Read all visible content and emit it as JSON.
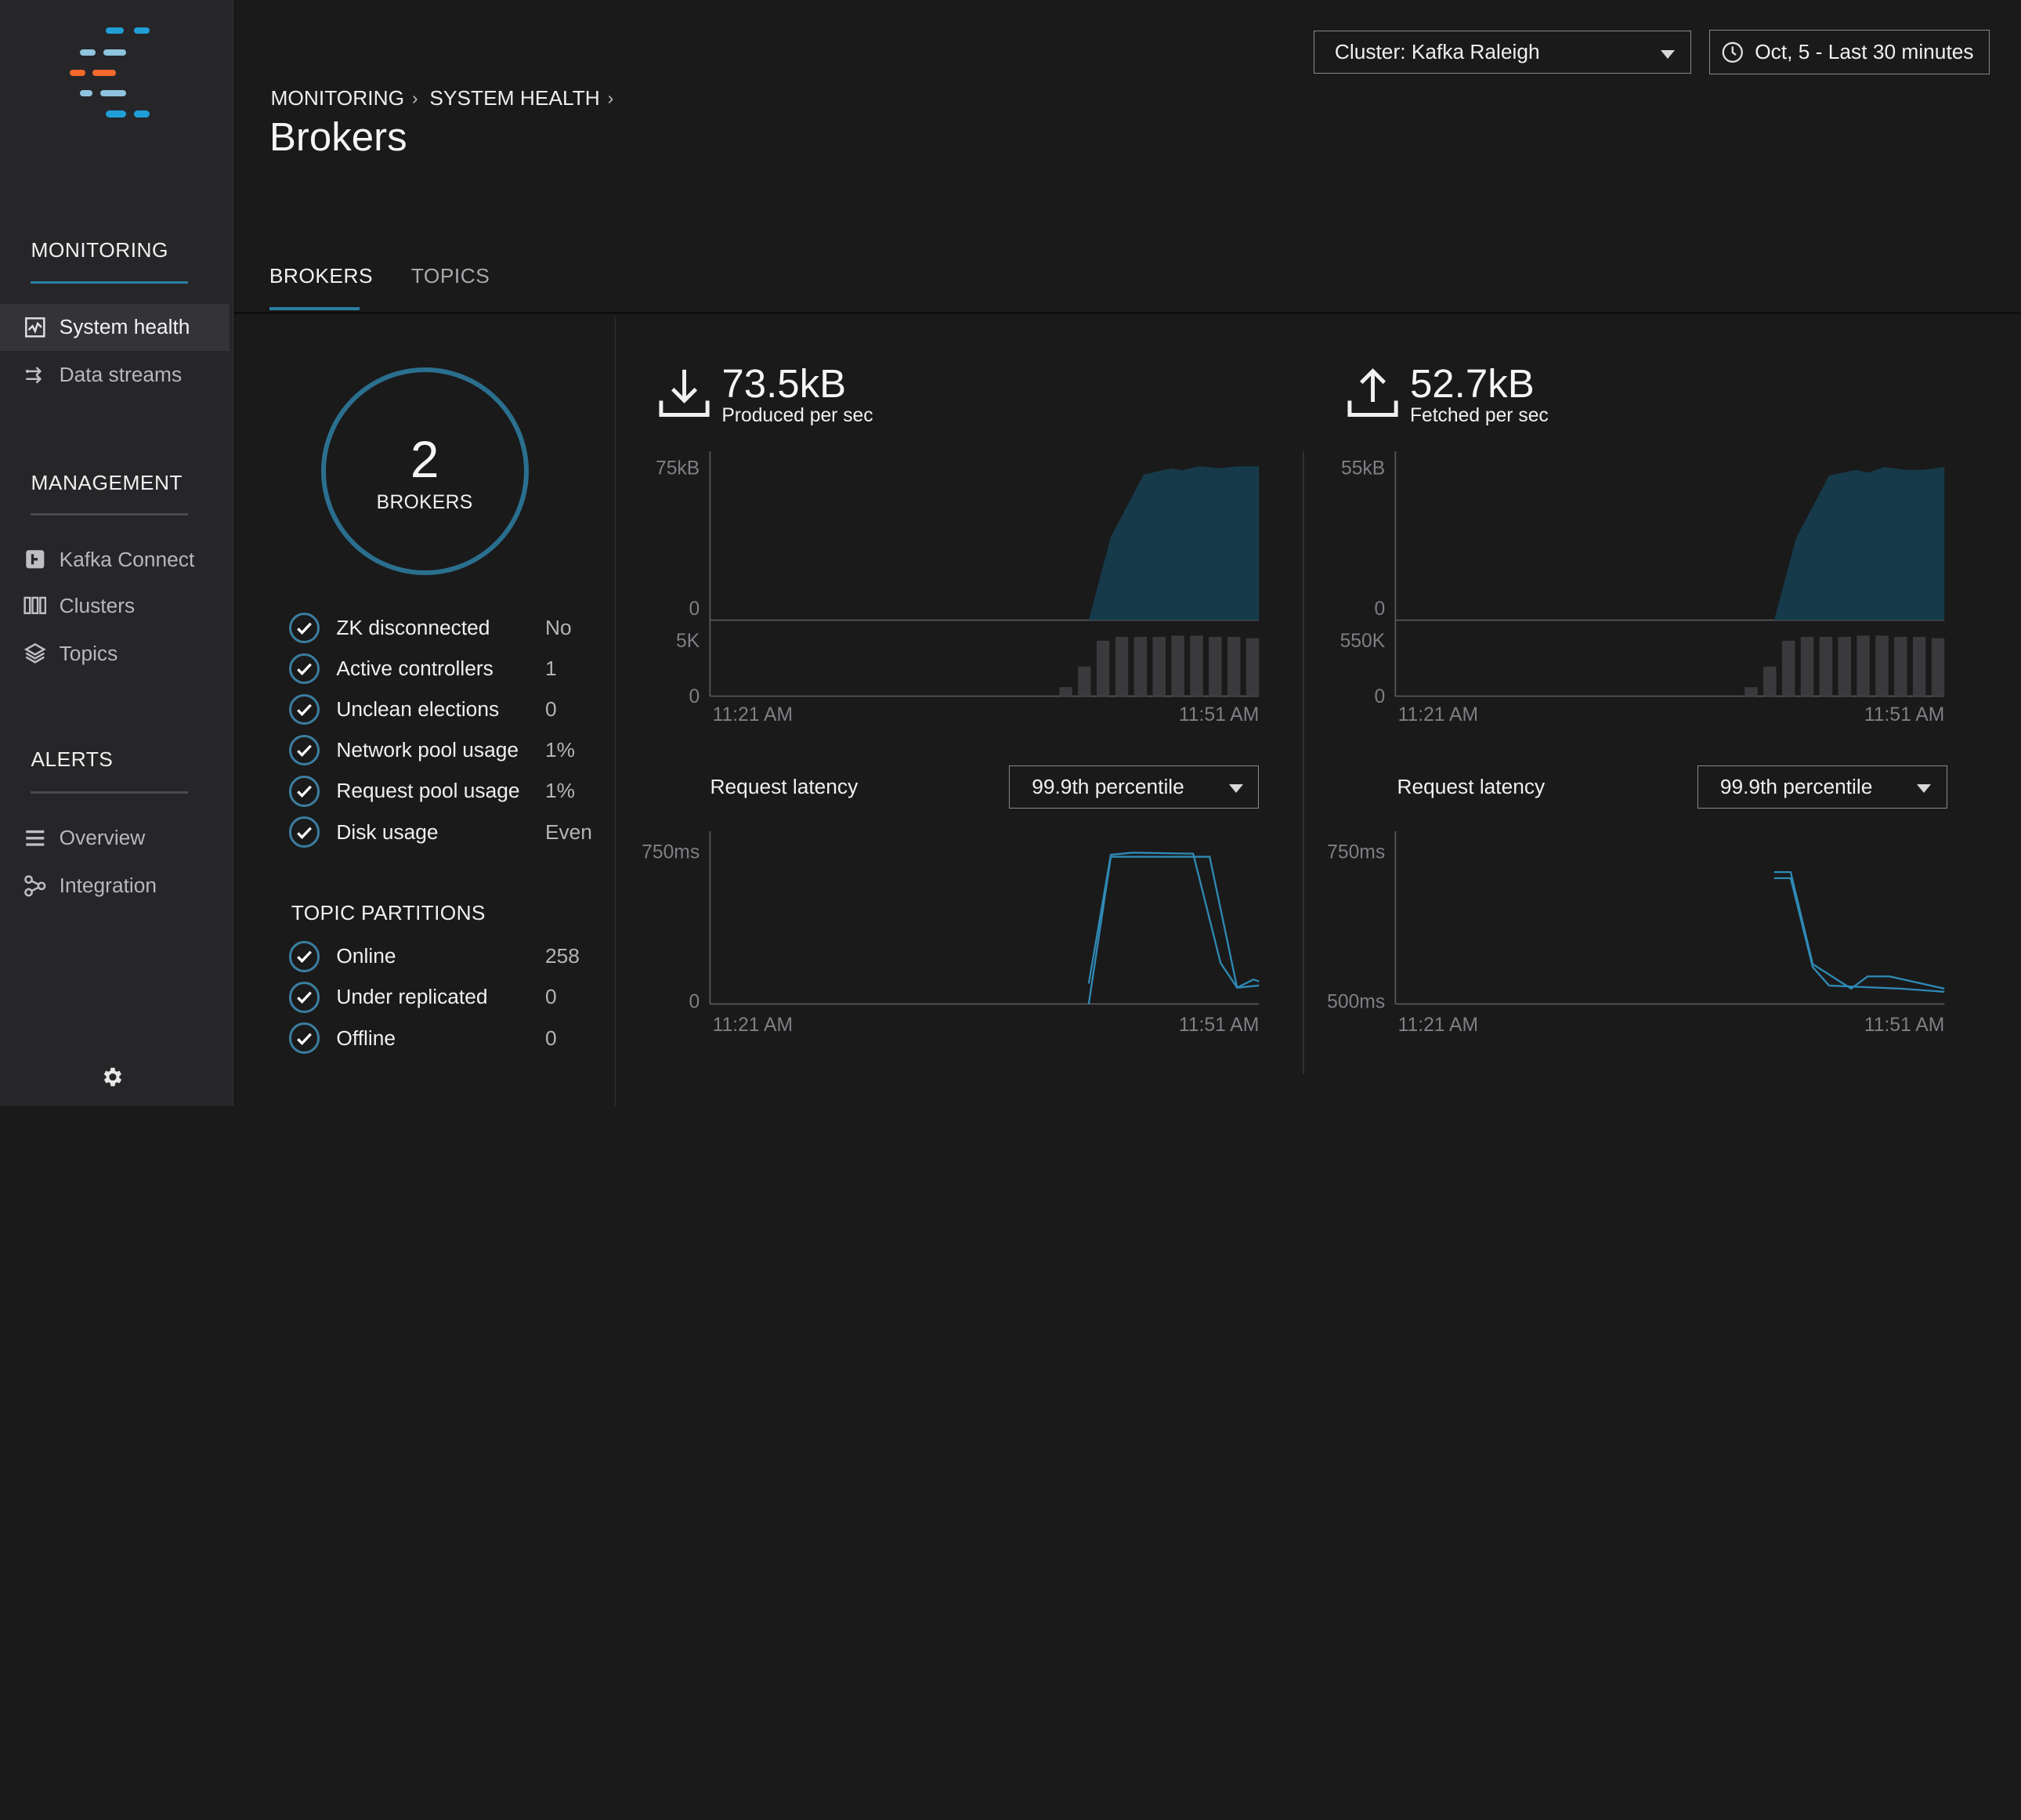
{
  "sidebar": {
    "sections": [
      {
        "title": "MONITORING",
        "items": [
          {
            "label": "System health",
            "icon": "activity-chart-icon",
            "active": true
          },
          {
            "label": "Data streams",
            "icon": "data-streams-icon",
            "active": false
          }
        ]
      },
      {
        "title": "MANAGEMENT",
        "items": [
          {
            "label": "Kafka Connect",
            "icon": "kafka-connect-icon",
            "active": false
          },
          {
            "label": "Clusters",
            "icon": "clusters-icon",
            "active": false
          },
          {
            "label": "Topics",
            "icon": "layers-icon",
            "active": false
          }
        ]
      },
      {
        "title": "ALERTS",
        "items": [
          {
            "label": "Overview",
            "icon": "list-icon",
            "active": false
          },
          {
            "label": "Integration",
            "icon": "integration-icon",
            "active": false
          }
        ]
      }
    ],
    "settings_icon": "gear-icon"
  },
  "header": {
    "breadcrumb": [
      "MONITORING",
      "SYSTEM HEALTH"
    ],
    "title": "Brokers",
    "cluster_select": "Cluster: Kafka Raleigh",
    "time_range": "Oct, 5 - Last 30 minutes"
  },
  "tabs": [
    {
      "label": "BROKERS",
      "active": true
    },
    {
      "label": "TOPICS",
      "active": false
    }
  ],
  "brokers": {
    "count": "2",
    "count_label": "BROKERS",
    "status": [
      {
        "label": "ZK disconnected",
        "value": "No"
      },
      {
        "label": "Active controllers",
        "value": "1"
      },
      {
        "label": "Unclean elections",
        "value": "0"
      },
      {
        "label": "Network pool usage",
        "value": "1%"
      },
      {
        "label": "Request pool usage",
        "value": "1%"
      },
      {
        "label": "Disk usage",
        "value": "Even"
      }
    ],
    "partitions_title": "TOPIC PARTITIONS",
    "partitions": [
      {
        "label": "Online",
        "value": "258"
      },
      {
        "label": "Under replicated",
        "value": "0"
      },
      {
        "label": "Offline",
        "value": "0"
      }
    ]
  },
  "produced": {
    "value": "73.5kB",
    "label": "Produced per sec",
    "icon": "download-icon",
    "latency_label": "Request latency",
    "latency_select": "99.9th percentile"
  },
  "fetched": {
    "value": "52.7kB",
    "label": "Fetched per sec",
    "icon": "upload-icon",
    "latency_label": "Request latency",
    "latency_select": "99.9th percentile"
  },
  "colors": {
    "accent": "#2a7fa3",
    "area_fill": "#163a4a",
    "line": "#2f8ab5",
    "bar": "#3a3a3d",
    "logo_blue": "#1f9fd6",
    "logo_orange": "#f26a2b",
    "logo_light": "#8fc4df"
  },
  "chart_data": [
    {
      "type": "area",
      "name": "produced-throughput",
      "x_labels": [
        "11:21 AM",
        "11:51 AM"
      ],
      "y_labels": [
        "75kB",
        "0"
      ],
      "ylim": [
        0,
        75
      ],
      "x": [
        0,
        0.69,
        0.73,
        0.79,
        0.84,
        0.86,
        0.89,
        0.93,
        0.96,
        1.0
      ],
      "values": [
        0,
        0,
        40,
        70,
        73,
        72,
        74,
        73,
        74,
        74
      ]
    },
    {
      "type": "bar",
      "name": "produced-requests",
      "y_labels": [
        "5K",
        "0"
      ],
      "ylim": [
        0,
        5
      ],
      "values": [
        0.7,
        2.3,
        4.3,
        4.6,
        4.6,
        4.6,
        4.7,
        4.7,
        4.6,
        4.6,
        4.5
      ]
    },
    {
      "type": "line",
      "name": "produced-latency",
      "x_labels": [
        "11:21 AM",
        "11:51 AM"
      ],
      "y_labels": [
        "750ms",
        "0"
      ],
      "ylim": [
        0,
        750
      ],
      "series": [
        {
          "x": [
            0.69,
            0.73,
            0.77,
            0.88,
            0.93,
            0.96,
            0.99,
            1.0
          ],
          "values": [
            100,
            730,
            740,
            735,
            200,
            80,
            120,
            110
          ]
        },
        {
          "x": [
            0.69,
            0.73,
            0.87,
            0.91,
            0.96,
            1.0
          ],
          "values": [
            0,
            720,
            720,
            720,
            80,
            90
          ]
        }
      ]
    },
    {
      "type": "area",
      "name": "fetched-throughput",
      "x_labels": [
        "11:21 AM",
        "11:51 AM"
      ],
      "y_labels": [
        "55kB",
        "0"
      ],
      "ylim": [
        0,
        55
      ],
      "x": [
        0,
        0.69,
        0.73,
        0.79,
        0.84,
        0.86,
        0.89,
        0.93,
        0.96,
        1.0
      ],
      "values": [
        0,
        0,
        29,
        51,
        53,
        52,
        54,
        53,
        53,
        54
      ]
    },
    {
      "type": "bar",
      "name": "fetched-requests",
      "y_labels": [
        "550K",
        "0"
      ],
      "ylim": [
        0,
        550
      ],
      "values": [
        77,
        253,
        473,
        506,
        506,
        506,
        517,
        517,
        506,
        506,
        495
      ]
    },
    {
      "type": "line",
      "name": "fetched-latency",
      "x_labels": [
        "11:21 AM",
        "11:51 AM"
      ],
      "y_labels": [
        "750ms",
        "500ms"
      ],
      "ylim": [
        500,
        750
      ],
      "series": [
        {
          "x": [
            0.69,
            0.72,
            0.76,
            0.83,
            0.86,
            0.9,
            1.0
          ],
          "values": [
            715,
            715,
            565,
            525,
            545,
            545,
            525
          ]
        },
        {
          "x": [
            0.69,
            0.72,
            0.76,
            0.79,
            0.92,
            1.0
          ],
          "values": [
            705,
            705,
            560,
            530,
            525,
            520
          ]
        }
      ]
    }
  ]
}
